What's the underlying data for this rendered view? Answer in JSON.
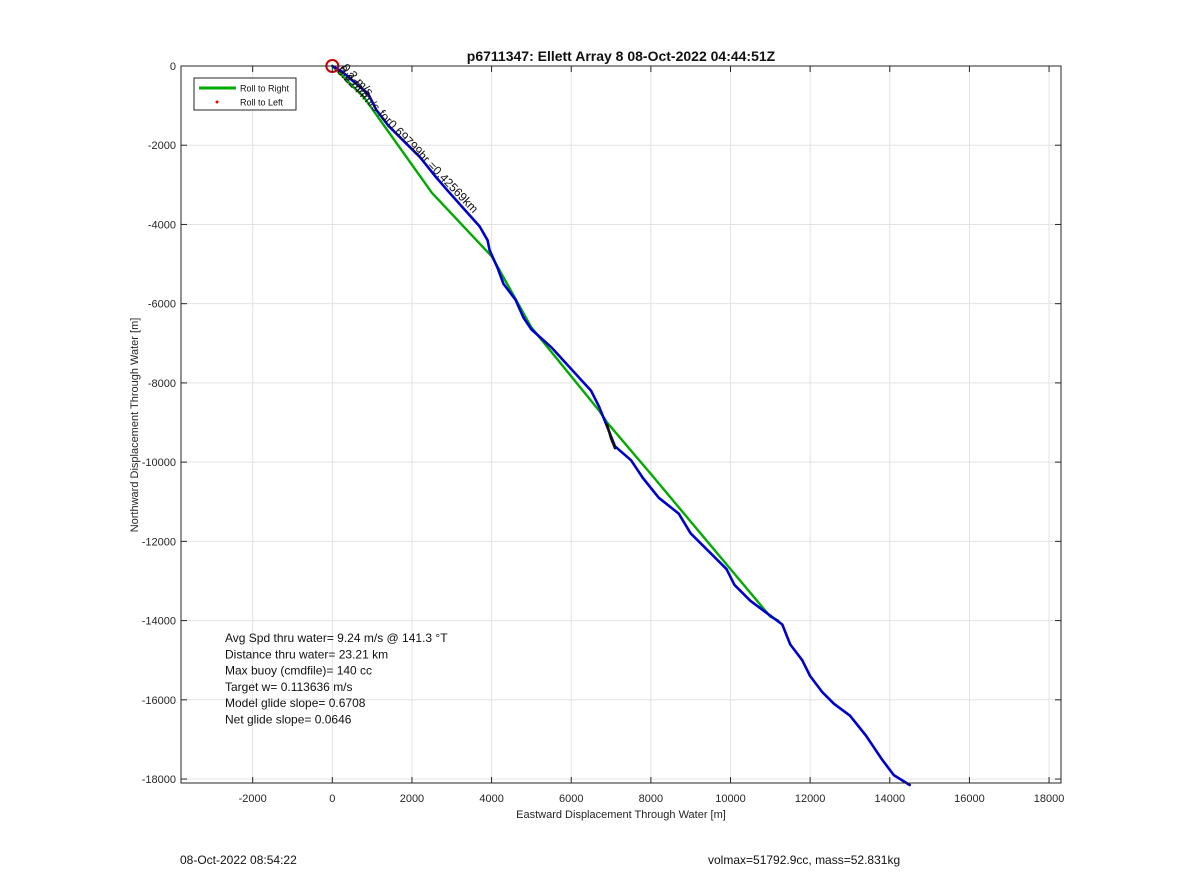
{
  "chart_data": {
    "type": "line",
    "title": "p6711347: Ellett Array 8 08-Oct-2022 04:44:51Z",
    "xlabel": "Eastward Displacement Through Water [m]",
    "ylabel": "Northward Displacement Through Water [m]",
    "xlim": [
      -3800,
      18300
    ],
    "ylim": [
      -18100,
      0
    ],
    "xticks": [
      -2000,
      0,
      2000,
      4000,
      6000,
      8000,
      10000,
      12000,
      14000,
      16000,
      18000
    ],
    "yticks": [
      0,
      -2000,
      -4000,
      -6000,
      -8000,
      -10000,
      -12000,
      -14000,
      -16000,
      -18000
    ],
    "grid": true,
    "legend": {
      "placement": "top-left",
      "entries": [
        {
          "label": "Roll to Right",
          "color": "#00aa00",
          "style": "line"
        },
        {
          "label": "Roll to Left",
          "color": "#ff0000",
          "style": "dot"
        }
      ]
    },
    "start_marker": {
      "x": 0,
      "y": 0,
      "color": "#cc0000"
    },
    "series": [
      {
        "color": "#00aa00",
        "points": [
          [
            0,
            0
          ],
          [
            800,
            -800
          ],
          [
            2500,
            -3200
          ],
          [
            3950,
            -4750
          ],
          [
            4000,
            -4800
          ],
          [
            5000,
            -6600
          ],
          [
            6700,
            -8700
          ],
          [
            6900,
            -9000
          ],
          [
            8000,
            -10300
          ],
          [
            9000,
            -11500
          ],
          [
            10000,
            -12700
          ],
          [
            11000,
            -13900
          ],
          [
            11200,
            -14000
          ]
        ]
      },
      {
        "color": "#0000cc",
        "points": [
          [
            0,
            0
          ],
          [
            250,
            -150
          ],
          [
            600,
            -450
          ],
          [
            900,
            -700
          ],
          [
            1100,
            -1100
          ],
          [
            1400,
            -1500
          ],
          [
            1800,
            -1900
          ],
          [
            2200,
            -2300
          ],
          [
            2600,
            -2800
          ],
          [
            2900,
            -3150
          ],
          [
            3300,
            -3600
          ],
          [
            3700,
            -4050
          ],
          [
            3900,
            -4400
          ],
          [
            3950,
            -4650
          ],
          [
            4150,
            -5100
          ],
          [
            4300,
            -5500
          ],
          [
            4600,
            -5900
          ],
          [
            4800,
            -6350
          ],
          [
            5000,
            -6650
          ],
          [
            5500,
            -7100
          ],
          [
            6000,
            -7650
          ],
          [
            6500,
            -8200
          ],
          [
            6700,
            -8600
          ],
          [
            6900,
            -9100
          ],
          [
            7100,
            -9600
          ],
          [
            7500,
            -9950
          ],
          [
            7800,
            -10400
          ],
          [
            8200,
            -10900
          ],
          [
            8700,
            -11300
          ],
          [
            9000,
            -11800
          ],
          [
            9500,
            -12300
          ],
          [
            9900,
            -12700
          ],
          [
            10100,
            -13100
          ],
          [
            10500,
            -13500
          ],
          [
            10900,
            -13800
          ],
          [
            11300,
            -14100
          ],
          [
            11500,
            -14600
          ],
          [
            11800,
            -15000
          ],
          [
            12000,
            -15400
          ],
          [
            12300,
            -15800
          ],
          [
            12600,
            -16100
          ],
          [
            13000,
            -16400
          ],
          [
            13400,
            -16900
          ],
          [
            13800,
            -17500
          ],
          [
            14100,
            -17900
          ],
          [
            14500,
            -18150
          ]
        ]
      },
      {
        "color": "#111111",
        "points": [
          [
            6900,
            -9050
          ],
          [
            7000,
            -9400
          ],
          [
            7100,
            -9650
          ]
        ]
      }
    ],
    "annotations": [
      {
        "text": "0.2244m/s for0.69799hr =0.42569km",
        "x": 100,
        "y": -150,
        "angle_deg": 46
      },
      {
        "text": "0.2 m/s",
        "x": 140,
        "y": -100,
        "angle_deg": 46
      },
      {
        "text": "0.2 m/s",
        "x": 220,
        "y": -60,
        "angle_deg": 46
      }
    ],
    "stats": [
      "Avg Spd thru water=  9.24 m/s @ 141.3 °T",
      "Distance thru water= 23.21 km",
      "Max buoy (cmdfile)= 140 cc",
      "Target w= 0.113636 m/s",
      "Model glide slope= 0.6708",
      "Net glide slope= 0.0646"
    ]
  },
  "footer": {
    "left": "08-Oct-2022 08:54:22",
    "right": "volmax=51792.9cc, mass=52.831kg"
  }
}
